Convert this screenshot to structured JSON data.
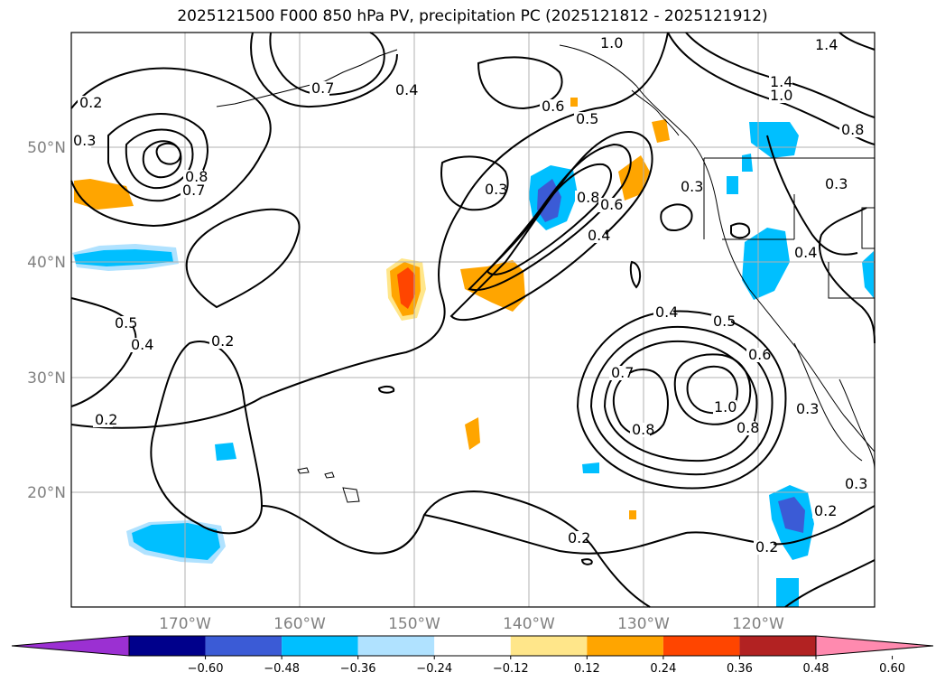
{
  "title": "2025121500 F000 850 hPa PV, precipitation PC (2025121812 - 2025121912)",
  "map": {
    "lat_labels": [
      "50°N",
      "40°N",
      "30°N",
      "20°N"
    ],
    "lon_labels": [
      "170°W",
      "160°W",
      "150°W",
      "140°W",
      "130°W",
      "120°W"
    ],
    "contour_labels": [
      "0.2",
      "0.3",
      "0.4",
      "0.5",
      "0.6",
      "0.7",
      "0.8",
      "1.0",
      "1.4"
    ]
  },
  "colorbar": {
    "ticks": [
      "−0.60",
      "−0.48",
      "−0.36",
      "−0.24",
      "−0.12",
      "0.12",
      "0.24",
      "0.36",
      "0.48",
      "0.60"
    ],
    "colors": [
      "#9b30d2",
      "#00008b",
      "#3b5bd6",
      "#00bfff",
      "#b0e2ff",
      "#ffffff",
      "#ffe68a",
      "#ffa500",
      "#ff4500",
      "#b22222",
      "#ff8aaf"
    ]
  },
  "colors": {
    "grid": "#b0b0b0",
    "contour": "#000000",
    "frame": "#000000"
  }
}
